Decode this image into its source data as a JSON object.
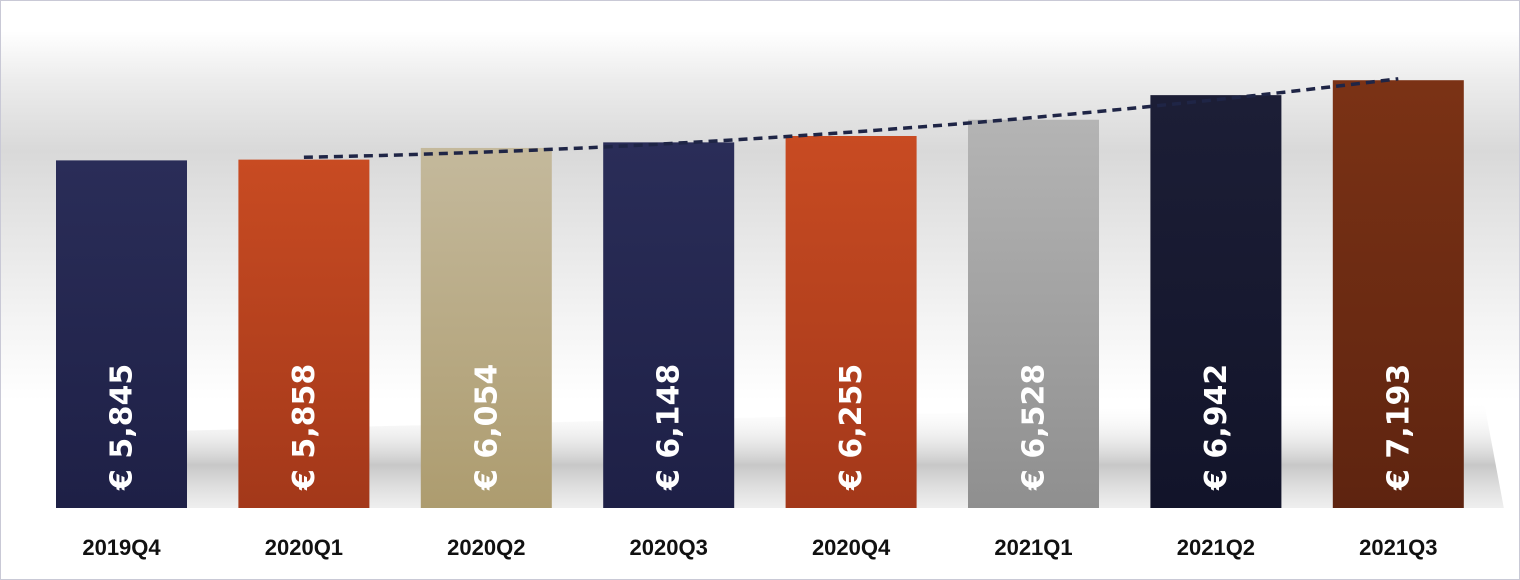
{
  "chart_data": {
    "type": "bar",
    "title": "",
    "xlabel": "",
    "ylabel": "",
    "currency_symbol": "€",
    "categories": [
      "2019Q4",
      "2020Q1",
      "2020Q2",
      "2020Q3",
      "2020Q4",
      "2021Q1",
      "2021Q2",
      "2021Q3"
    ],
    "values": [
      5845,
      5858,
      6054,
      6148,
      6255,
      6528,
      6942,
      7193
    ],
    "value_labels": [
      "€ 5,845",
      "€ 5,858",
      "€ 6,054",
      "€ 6,148",
      "€ 6,255",
      "€ 6,528",
      "€ 6,942",
      "€ 7,193"
    ],
    "ylim": [
      0,
      7600
    ],
    "grid": false,
    "legend": "none",
    "trendline": {
      "style": "dashed",
      "color": "#1f2546",
      "from_category": "2020Q1",
      "to_category": "2021Q3"
    },
    "bar_colors": [
      [
        "#2a2d58",
        "#1e2046"
      ],
      [
        "#c84b22",
        "#a3381a"
      ],
      [
        "#c4b99c",
        "#ad9c6f"
      ],
      [
        "#2a2d58",
        "#1e2046"
      ],
      [
        "#c84b22",
        "#a3381a"
      ],
      [
        "#b4b4b4",
        "#8f8f8f"
      ],
      [
        "#1c1e36",
        "#12142a"
      ],
      [
        "#7b3215",
        "#5e2410"
      ]
    ]
  }
}
